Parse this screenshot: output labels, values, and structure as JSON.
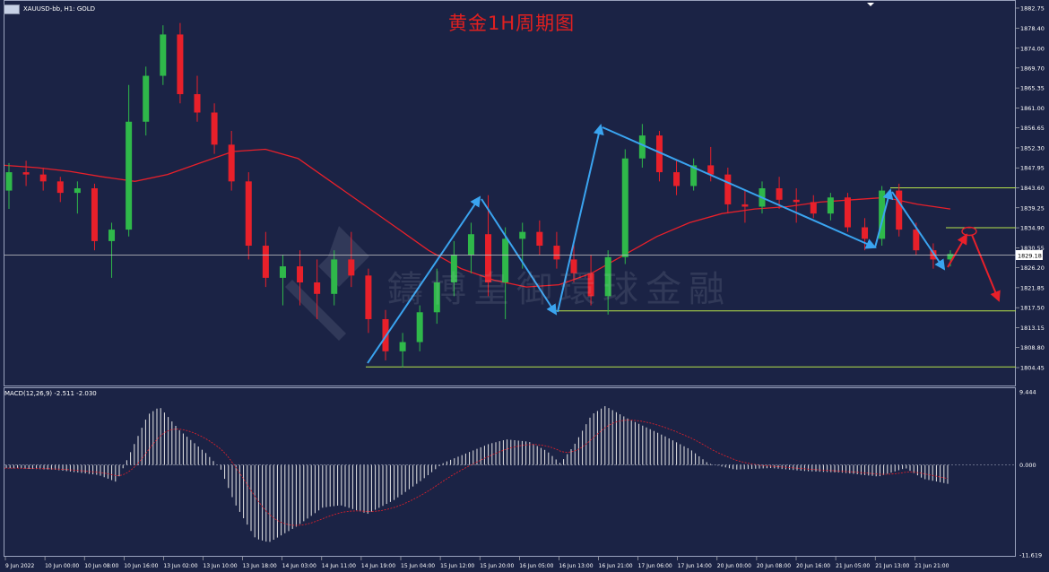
{
  "header": {
    "symbol_info": "XAUUSD-bb, H1: GOLD",
    "title": "黄金1H周期图",
    "icon": "chart-window-icon"
  },
  "watermark": {
    "text": "鑄博皇御環球金融",
    "logo": "company-logo-icon"
  },
  "price_axis": {
    "labels": [
      "1882.75",
      "1878.40",
      "1874.00",
      "1869.70",
      "1865.35",
      "1861.00",
      "1856.65",
      "1852.30",
      "1847.95",
      "1843.60",
      "1839.25",
      "1834.90",
      "1830.55",
      "1826.20",
      "1821.85",
      "1817.50",
      "1813.15",
      "1808.80",
      "1804.45"
    ],
    "current_price": "1829.18"
  },
  "macd_panel": {
    "label": "MACD(12,26,9) -2.511 -2.030",
    "axis_labels": [
      "9.444",
      "0.000",
      "-11.619"
    ]
  },
  "time_axis": {
    "labels": [
      "9 Jun 2022",
      "10 Jun 00:00",
      "10 Jun 08:00",
      "10 Jun 16:00",
      "13 Jun 02:00",
      "13 Jun 10:00",
      "13 Jun 18:00",
      "14 Jun 03:00",
      "14 Jun 11:00",
      "14 Jun 19:00",
      "15 Jun 04:00",
      "15 Jun 12:00",
      "15 Jun 20:00",
      "16 Jun 05:00",
      "16 Jun 13:00",
      "16 Jun 21:00",
      "17 Jun 06:00",
      "17 Jun 14:00",
      "20 Jun 00:00",
      "20 Jun 08:00",
      "20 Jun 16:00",
      "21 Jun 05:00",
      "21 Jun 13:00",
      "21 Jun 21:00"
    ]
  },
  "colors": {
    "background": "#1b2345",
    "up_candle": "#2fb84a",
    "down_candle": "#e8202a",
    "ma_line": "#e8202a",
    "trend_arrows": "#3aa4f0",
    "support_lines": "#b7e34a",
    "forecast_arrows": "#e8202a",
    "macd_hist": "#e6e6e6",
    "macd_signal": "#e8202a",
    "title": "#e02020"
  },
  "chart_data": {
    "type": "candlestick",
    "symbol": "XAUUSD-bb",
    "timeframe": "H1",
    "ylim": [
      1802.0,
      1884.0
    ],
    "support_levels": [
      1843.6,
      1834.9,
      1816.8,
      1804.6
    ],
    "current_price": 1829.18,
    "ohlc_approx": [
      [
        1843.0,
        1849.0,
        1839.0,
        1847.0
      ],
      [
        1847.0,
        1849.5,
        1844.0,
        1846.5
      ],
      [
        1846.5,
        1848.0,
        1843.0,
        1845.0
      ],
      [
        1845.0,
        1846.0,
        1840.5,
        1842.5
      ],
      [
        1842.5,
        1845.0,
        1838.0,
        1843.5
      ],
      [
        1843.5,
        1844.5,
        1830.0,
        1832.0
      ],
      [
        1832.0,
        1836.0,
        1824.0,
        1834.5
      ],
      [
        1834.5,
        1866.0,
        1833.0,
        1858.0
      ],
      [
        1858.0,
        1870.0,
        1855.0,
        1868.0
      ],
      [
        1868.0,
        1879.0,
        1866.0,
        1877.0
      ],
      [
        1877.0,
        1879.5,
        1862.0,
        1864.0
      ],
      [
        1864.0,
        1868.0,
        1858.0,
        1860.0
      ],
      [
        1860.0,
        1862.0,
        1851.0,
        1853.0
      ],
      [
        1853.0,
        1856.0,
        1843.0,
        1845.0
      ],
      [
        1845.0,
        1847.0,
        1828.0,
        1831.0
      ],
      [
        1831.0,
        1834.0,
        1822.0,
        1824.0
      ],
      [
        1824.0,
        1829.0,
        1818.0,
        1826.5
      ],
      [
        1826.5,
        1830.0,
        1818.0,
        1823.0
      ],
      [
        1823.0,
        1828.0,
        1815.0,
        1820.5
      ],
      [
        1820.5,
        1830.0,
        1818.0,
        1828.0
      ],
      [
        1828.0,
        1834.0,
        1822.0,
        1824.5
      ],
      [
        1824.5,
        1826.0,
        1812.0,
        1815.0
      ],
      [
        1815.0,
        1817.0,
        1806.0,
        1808.0
      ],
      [
        1808.0,
        1812.0,
        1804.5,
        1810.0
      ],
      [
        1810.0,
        1818.0,
        1808.0,
        1816.5
      ],
      [
        1816.5,
        1826.0,
        1814.0,
        1823.0
      ],
      [
        1823.0,
        1832.0,
        1820.0,
        1829.0
      ],
      [
        1829.0,
        1836.0,
        1825.0,
        1833.5
      ],
      [
        1833.5,
        1842.0,
        1820.0,
        1823.0
      ],
      [
        1823.0,
        1835.0,
        1815.0,
        1832.5
      ],
      [
        1832.5,
        1836.0,
        1826.0,
        1834.0
      ],
      [
        1834.0,
        1836.5,
        1829.0,
        1831.0
      ],
      [
        1831.0,
        1834.0,
        1826.0,
        1828.0
      ],
      [
        1828.0,
        1832.0,
        1823.0,
        1825.0
      ],
      [
        1825.0,
        1829.0,
        1818.0,
        1820.0
      ],
      [
        1820.0,
        1830.0,
        1816.0,
        1828.5
      ],
      [
        1828.5,
        1852.0,
        1827.0,
        1850.0
      ],
      [
        1850.0,
        1857.5,
        1848.0,
        1855.0
      ],
      [
        1855.0,
        1856.0,
        1845.0,
        1847.0
      ],
      [
        1847.0,
        1849.5,
        1842.0,
        1844.0
      ],
      [
        1844.0,
        1850.0,
        1843.0,
        1848.5
      ],
      [
        1848.5,
        1852.5,
        1845.0,
        1846.5
      ],
      [
        1846.5,
        1848.0,
        1838.0,
        1840.0
      ],
      [
        1840.0,
        1843.0,
        1836.0,
        1839.5
      ],
      [
        1839.5,
        1845.0,
        1838.0,
        1843.5
      ],
      [
        1843.5,
        1846.0,
        1839.0,
        1841.0
      ],
      [
        1841.0,
        1843.5,
        1836.0,
        1840.5
      ],
      [
        1840.5,
        1842.0,
        1837.0,
        1838.0
      ],
      [
        1838.0,
        1842.5,
        1836.5,
        1841.5
      ],
      [
        1841.5,
        1842.5,
        1834.0,
        1835.0
      ],
      [
        1835.0,
        1837.0,
        1830.0,
        1832.5
      ],
      [
        1832.5,
        1844.0,
        1831.0,
        1843.0
      ],
      [
        1843.0,
        1844.5,
        1833.0,
        1834.5
      ],
      [
        1834.5,
        1836.0,
        1829.0,
        1830.0
      ],
      [
        1830.0,
        1831.5,
        1826.0,
        1828.0
      ],
      [
        1828.0,
        1830.0,
        1826.5,
        1829.2
      ]
    ],
    "moving_average": {
      "name": "",
      "points_approx": [
        1848.5,
        1848.0,
        1847.2,
        1846.0,
        1845.0,
        1846.5,
        1849.0,
        1851.5,
        1852.0,
        1850.0,
        1845.0,
        1840.0,
        1835.0,
        1830.0,
        1826.0,
        1823.5,
        1822.0,
        1822.5,
        1825.0,
        1829.0,
        1833.0,
        1836.0,
        1838.0,
        1839.0,
        1839.5,
        1840.5,
        1841.0,
        1841.5,
        1840.0,
        1839.0
      ]
    },
    "macd": {
      "name": "MACD(12,26,9)",
      "value": -2.511,
      "signal": -2.03,
      "ylim": [
        -11.619,
        9.444
      ]
    }
  }
}
